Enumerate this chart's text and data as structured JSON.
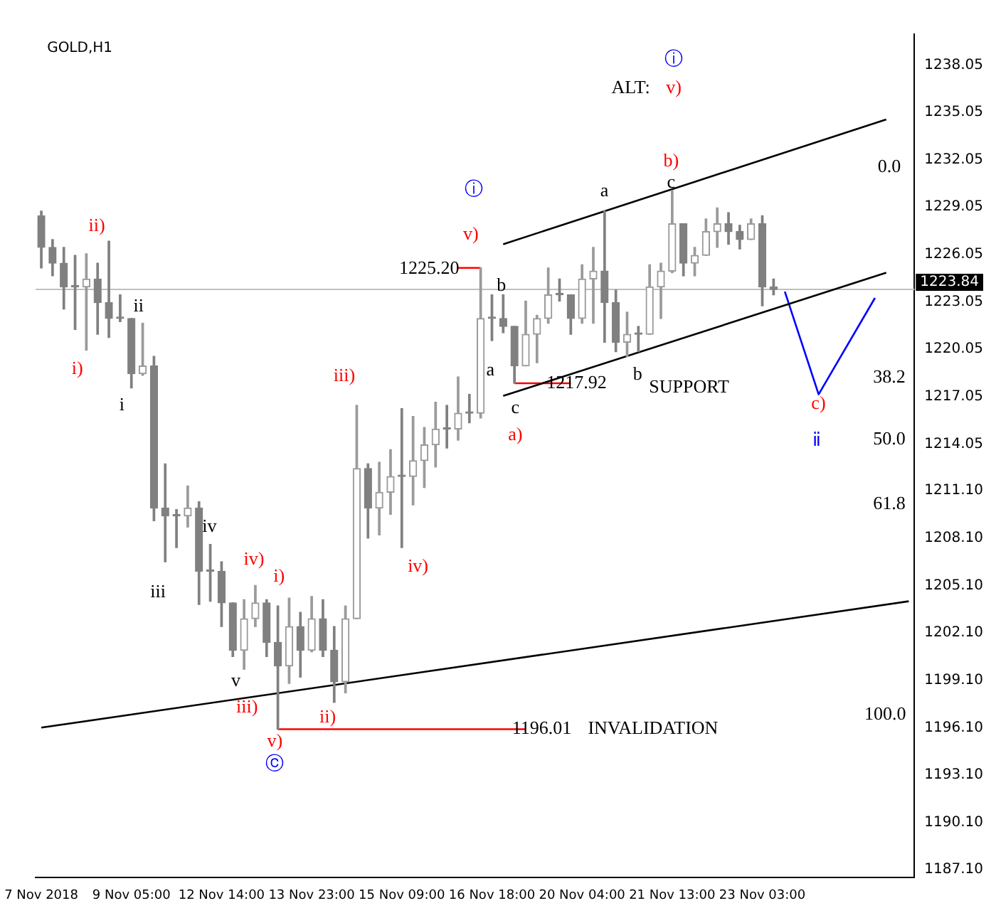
{
  "chart_data": {
    "type": "candlestick",
    "title": "GOLD,H1",
    "colors": [
      "#808080",
      "#808080",
      "#808080",
      "#808080",
      "#9a9a9a",
      "#808080",
      "#808080",
      "#808080",
      "#808080",
      "#9a9a9a",
      "#808080",
      "#808080",
      "#808080",
      "#9a9a9a",
      "#808080",
      "#808080",
      "#808080",
      "#808080",
      "#9a9a9a",
      "#9a9a9a",
      "#808080",
      "#808080",
      "#9a9a9a",
      "#808080",
      "#9a9a9a",
      "#808080",
      "#808080",
      "#9a9a9a",
      "#9a9a9a",
      "#808080",
      "#9a9a9a",
      "#9a9a9a",
      "#808080",
      "#9a9a9a",
      "#9a9a9a",
      "#9a9a9a",
      "#808080",
      "#9a9a9a",
      "#808080",
      "#9a9a9a",
      "#808080",
      "#808080",
      "#808080",
      "#9a9a9a",
      "#9a9a9a",
      "#9a9a9a",
      "#808080",
      "#808080",
      "#9a9a9a",
      "#9a9a9a",
      "#808080",
      "#808080",
      "#9a9a9a",
      "#808080",
      "#9a9a9a",
      "#9a9a9a",
      "#9a9a9a",
      "#808080",
      "#9a9a9a",
      "#9a9a9a",
      "#9a9a9a",
      "#808080",
      "#808080",
      "#9a9a9a",
      "#808080",
      "#808080",
      null,
      null,
      null,
      null,
      null,
      null,
      null,
      null,
      null,
      null,
      null,
      null
    ],
    "categories": [
      "7 Nov 2018",
      null,
      null,
      null,
      null,
      null,
      null,
      null,
      "9 Nov 05:00",
      null,
      null,
      null,
      null,
      null,
      null,
      null,
      "12 Nov 14:00",
      null,
      null,
      null,
      null,
      null,
      null,
      null,
      "13 Nov 23:00",
      null,
      null,
      null,
      null,
      null,
      null,
      null,
      "15 Nov 09:00",
      null,
      null,
      null,
      null,
      null,
      null,
      null,
      "16 Nov 18:00",
      null,
      null,
      null,
      null,
      null,
      null,
      null,
      "20 Nov 04:00",
      null,
      null,
      null,
      null,
      null,
      null,
      null,
      "21 Nov 13:00",
      null,
      null,
      null,
      null,
      null,
      null,
      null,
      "23 Nov 03:00",
      null,
      null,
      null,
      null,
      null,
      null,
      null,
      null,
      null,
      null,
      null,
      null,
      null
    ],
    "ohlc": [
      [
        1228.5,
        1228.8,
        1225.2,
        1226.5
      ],
      [
        1226.5,
        1227.0,
        1224.7,
        1225.5
      ],
      [
        1225.5,
        1226.5,
        1222.6,
        1224.0
      ],
      [
        1224.0,
        1226.0,
        1221.3,
        1224.0
      ],
      [
        1224.0,
        1226.1,
        1220.0,
        1224.5
      ],
      [
        1224.5,
        1225.5,
        1221.0,
        1223.0
      ],
      [
        1223.0,
        1226.9,
        1220.8,
        1222.0
      ],
      [
        1222.0,
        1223.5,
        1221.8,
        1222.0
      ],
      [
        1222.0,
        1222.0,
        1217.6,
        1218.5
      ],
      [
        1218.5,
        1221.7,
        1218.4,
        1219.0
      ],
      [
        1219.0,
        1219.6,
        1209.2,
        1210.0
      ],
      [
        1210.0,
        1212.8,
        1206.6,
        1209.5
      ],
      [
        1209.5,
        1209.9,
        1207.5,
        1209.5
      ],
      [
        1209.5,
        1211.4,
        1208.8,
        1210.0
      ],
      [
        1210.0,
        1210.4,
        1203.9,
        1206.0
      ],
      [
        1206.0,
        1207.7,
        1204.1,
        1206.0
      ],
      [
        1206.0,
        1206.6,
        1202.5,
        1204.0
      ],
      [
        1204.0,
        1204.0,
        1200.6,
        1201.0
      ],
      [
        1201.0,
        1204.2,
        1199.8,
        1203.0
      ],
      [
        1203.0,
        1205.1,
        1202.5,
        1204.0
      ],
      [
        1204.0,
        1204.2,
        1200.6,
        1201.5
      ],
      [
        1201.5,
        1203.8,
        1196.0,
        1200.0
      ],
      [
        1200.0,
        1204.3,
        1198.9,
        1202.5
      ],
      [
        1202.5,
        1203.4,
        1199.3,
        1201.0
      ],
      [
        1201.0,
        1204.4,
        1200.9,
        1203.0
      ],
      [
        1203.0,
        1204.2,
        1200.6,
        1201.0
      ],
      [
        1201.0,
        1202.5,
        1197.7,
        1199.0
      ],
      [
        1199.0,
        1203.8,
        1198.3,
        1203.0
      ],
      [
        1203.0,
        1216.5,
        1203.0,
        1212.5
      ],
      [
        1212.5,
        1212.8,
        1208.1,
        1210.0
      ],
      [
        1210.0,
        1212.9,
        1208.3,
        1211.0
      ],
      [
        1211.0,
        1213.7,
        1209.6,
        1212.0
      ],
      [
        1212.0,
        1216.3,
        1207.5,
        1212.0
      ],
      [
        1212.0,
        1215.8,
        1210.2,
        1213.0
      ],
      [
        1213.0,
        1215.1,
        1211.3,
        1214.0
      ],
      [
        1214.0,
        1216.7,
        1212.6,
        1215.0
      ],
      [
        1215.0,
        1216.5,
        1213.8,
        1215.0
      ],
      [
        1215.0,
        1218.3,
        1214.3,
        1216.0
      ],
      [
        1216.0,
        1217.2,
        1215.4,
        1216.0
      ],
      [
        1216.0,
        1225.2,
        1215.7,
        1222.0
      ],
      [
        1222.0,
        1223.5,
        1220.6,
        1222.0
      ],
      [
        1222.0,
        1223.5,
        1221.1,
        1221.5
      ],
      [
        1221.5,
        1221.5,
        1217.9,
        1219.0
      ],
      [
        1219.0,
        1223.1,
        1219.0,
        1221.0
      ],
      [
        1221.0,
        1222.2,
        1219.2,
        1222.0
      ],
      [
        1222.0,
        1225.2,
        1221.7,
        1223.5
      ],
      [
        1223.5,
        1224.5,
        1223.1,
        1223.5
      ],
      [
        1223.5,
        1223.5,
        1221.0,
        1222.0
      ],
      [
        1222.0,
        1225.4,
        1221.7,
        1224.5
      ],
      [
        1224.5,
        1226.5,
        1221.7,
        1225.0
      ],
      [
        1225.0,
        1228.8,
        1220.5,
        1223.0
      ],
      [
        1223.0,
        1223.8,
        1219.9,
        1220.5
      ],
      [
        1220.5,
        1222.4,
        1219.6,
        1221.0
      ],
      [
        1221.0,
        1221.5,
        1219.9,
        1221.0
      ],
      [
        1221.0,
        1225.4,
        1221.0,
        1224.0
      ],
      [
        1224.0,
        1225.5,
        1222.0,
        1225.0
      ],
      [
        1225.0,
        1230.1,
        1224.9,
        1228.0
      ],
      [
        1228.0,
        1228.0,
        1224.7,
        1225.5
      ],
      [
        1225.5,
        1226.5,
        1224.7,
        1226.0
      ],
      [
        1226.0,
        1228.3,
        1226.0,
        1227.5
      ],
      [
        1227.5,
        1229.0,
        1226.5,
        1228.0
      ],
      [
        1228.0,
        1228.7,
        1226.7,
        1227.5
      ],
      [
        1227.5,
        1227.9,
        1226.4,
        1227.0
      ],
      [
        1227.0,
        1228.3,
        1227.0,
        1228.0
      ],
      [
        1228.0,
        1228.5,
        1222.8,
        1224.0
      ],
      [
        1224.0,
        1224.5,
        1223.5,
        1223.84
      ],
      null,
      null,
      null,
      null,
      null,
      null,
      null,
      null,
      null,
      null,
      null,
      null
    ],
    "series": [
      {
        "type": "line",
        "color": "#000000",
        "values": [
          1196.1,
          null,
          null,
          null,
          null,
          null,
          null,
          null,
          null,
          null,
          null,
          null,
          null,
          null,
          null,
          null,
          null,
          null,
          null,
          null,
          null,
          null,
          null,
          null,
          null,
          null,
          null,
          null,
          null,
          null,
          null,
          null,
          null,
          null,
          null,
          null,
          null,
          null,
          null,
          null,
          null,
          null,
          null,
          null,
          null,
          null,
          null,
          null,
          null,
          null,
          null,
          null,
          null,
          null,
          null,
          null,
          null,
          null,
          null,
          null,
          null,
          null,
          null,
          null,
          null,
          null,
          null,
          null,
          null,
          null,
          null,
          null,
          null,
          null,
          null,
          null,
          null,
          1204.1
        ]
      },
      {
        "type": "line",
        "color": "#000000",
        "values": [
          null,
          null,
          null,
          null,
          null,
          null,
          null,
          null,
          null,
          null,
          null,
          null,
          null,
          null,
          null,
          null,
          null,
          null,
          null,
          null,
          null,
          null,
          null,
          null,
          null,
          null,
          null,
          null,
          null,
          null,
          null,
          null,
          null,
          null,
          null,
          null,
          null,
          null,
          null,
          null,
          null,
          1226.7,
          null,
          null,
          null,
          null,
          null,
          null,
          null,
          null,
          null,
          null,
          null,
          null,
          null,
          null,
          null,
          null,
          null,
          null,
          null,
          null,
          null,
          null,
          null,
          null,
          null,
          null,
          null,
          null,
          null,
          null,
          null,
          null,
          null,
          1234.6,
          null,
          null
        ]
      },
      {
        "type": "line",
        "color": "#000000",
        "values": [
          null,
          null,
          null,
          null,
          null,
          null,
          null,
          null,
          null,
          null,
          null,
          null,
          null,
          null,
          null,
          null,
          null,
          null,
          null,
          null,
          null,
          null,
          null,
          null,
          null,
          null,
          null,
          null,
          null,
          null,
          null,
          null,
          null,
          null,
          null,
          null,
          null,
          null,
          null,
          null,
          null,
          1217.1,
          null,
          null,
          null,
          null,
          null,
          null,
          null,
          null,
          null,
          null,
          null,
          null,
          null,
          null,
          null,
          null,
          null,
          null,
          null,
          null,
          null,
          null,
          null,
          null,
          null,
          null,
          null,
          null,
          null,
          null,
          null,
          null,
          null,
          1224.9,
          null,
          null
        ]
      },
      {
        "type": "line",
        "color": "#ff0000",
        "values": [
          null,
          null,
          null,
          null,
          null,
          null,
          null,
          null,
          null,
          null,
          null,
          null,
          null,
          null,
          null,
          null,
          null,
          null,
          null,
          null,
          null,
          null,
          null,
          null,
          null,
          null,
          null,
          null,
          null,
          null,
          null,
          null,
          null,
          null,
          null,
          null,
          null,
          1225.2,
          null,
          1225.2,
          null,
          null,
          null,
          null,
          null,
          null,
          null,
          null,
          null,
          null,
          null,
          null,
          null,
          null,
          null,
          null,
          null,
          null,
          null,
          null,
          null,
          null,
          null,
          null,
          null,
          null,
          null,
          null,
          null,
          null,
          null,
          null,
          null,
          null,
          null,
          null,
          null,
          null
        ]
      },
      {
        "type": "line",
        "color": "#ff0000",
        "values": [
          null,
          null,
          null,
          null,
          null,
          null,
          null,
          null,
          null,
          null,
          null,
          null,
          null,
          null,
          null,
          null,
          null,
          null,
          null,
          null,
          null,
          null,
          null,
          null,
          null,
          null,
          null,
          null,
          null,
          null,
          null,
          null,
          null,
          null,
          null,
          null,
          null,
          null,
          null,
          null,
          null,
          null,
          1217.9,
          null,
          null,
          null,
          null,
          1217.9,
          null,
          null,
          null,
          null,
          null,
          null,
          null,
          null,
          null,
          null,
          null,
          null,
          null,
          null,
          null,
          null,
          null,
          null,
          null,
          null,
          null,
          null,
          null,
          null,
          null,
          null,
          null,
          null,
          null,
          null
        ]
      },
      {
        "type": "line",
        "color": "#ff0000",
        "values": [
          null,
          null,
          null,
          null,
          null,
          null,
          null,
          null,
          null,
          null,
          null,
          null,
          null,
          null,
          null,
          null,
          null,
          null,
          null,
          null,
          null,
          1196.0,
          null,
          null,
          null,
          null,
          null,
          null,
          null,
          null,
          null,
          null,
          null,
          null,
          null,
          null,
          null,
          null,
          null,
          null,
          null,
          null,
          null,
          1196.0,
          null,
          null,
          null,
          null,
          null,
          null,
          null,
          null,
          null,
          null,
          null,
          null,
          null,
          null,
          null,
          null,
          null,
          null,
          null,
          null,
          null,
          null,
          null,
          null,
          null,
          null,
          null,
          null,
          null,
          null,
          null,
          null,
          null,
          null
        ]
      },
      {
        "type": "line",
        "color": "#0000ff",
        "values": [
          null,
          null,
          null,
          null,
          null,
          null,
          null,
          null,
          null,
          null,
          null,
          null,
          null,
          null,
          null,
          null,
          null,
          null,
          null,
          null,
          null,
          null,
          null,
          null,
          null,
          null,
          null,
          null,
          null,
          null,
          null,
          null,
          null,
          null,
          null,
          null,
          null,
          null,
          null,
          null,
          null,
          null,
          null,
          null,
          null,
          null,
          null,
          null,
          null,
          null,
          null,
          null,
          null,
          null,
          null,
          null,
          null,
          null,
          null,
          null,
          null,
          null,
          null,
          null,
          null,
          null,
          1223.7,
          null,
          null,
          1217.2,
          null,
          null,
          null,
          null,
          1223.3,
          null,
          null,
          null
        ]
      }
    ],
    "ref_lines": [
      {
        "axis": "y",
        "value": 1223.84,
        "label": "1223.84",
        "color": "#c0c0c0"
      }
    ],
    "annotations": [
      "ii)",
      "i)",
      "ii",
      "i",
      "iii",
      "iv",
      "iv)",
      "i)",
      "v",
      "iii)",
      "v)",
      "ⓒ",
      "ii)",
      "iii)",
      "iv)",
      "v)",
      "ⓘ",
      "a",
      "b",
      "c",
      "a)",
      "a",
      "b",
      "c",
      "b)",
      "SUPPORT",
      "INVALIDATION",
      "1225.20",
      "1217.92",
      "1196.01",
      "c)",
      "ⅱ",
      "ALT:",
      "v)",
      "ⓘ",
      "0.0",
      "38.2",
      "50.0",
      "61.8",
      "100.0"
    ],
    "ylim": [
      1186.6,
      1240.0
    ],
    "yticks": [
      1238.05,
      1235.05,
      1232.05,
      1229.05,
      1226.05,
      1223.05,
      1220.05,
      1217.05,
      1214.05,
      {
        "value": 1211.1,
        "label": "1211.10"
      },
      {
        "value": 1208.1,
        "label": "1208.10"
      },
      {
        "value": 1205.1,
        "label": "1205.10"
      },
      {
        "value": 1202.1,
        "label": "1202.10"
      },
      {
        "value": 1199.1,
        "label": "1199.10"
      },
      {
        "value": 1196.1,
        "label": "1196.10"
      },
      {
        "value": 1193.1,
        "label": "1193.10"
      },
      {
        "value": 1190.1,
        "label": "1190.10"
      },
      {
        "value": 1187.1,
        "label": "1187.10"
      }
    ]
  }
}
